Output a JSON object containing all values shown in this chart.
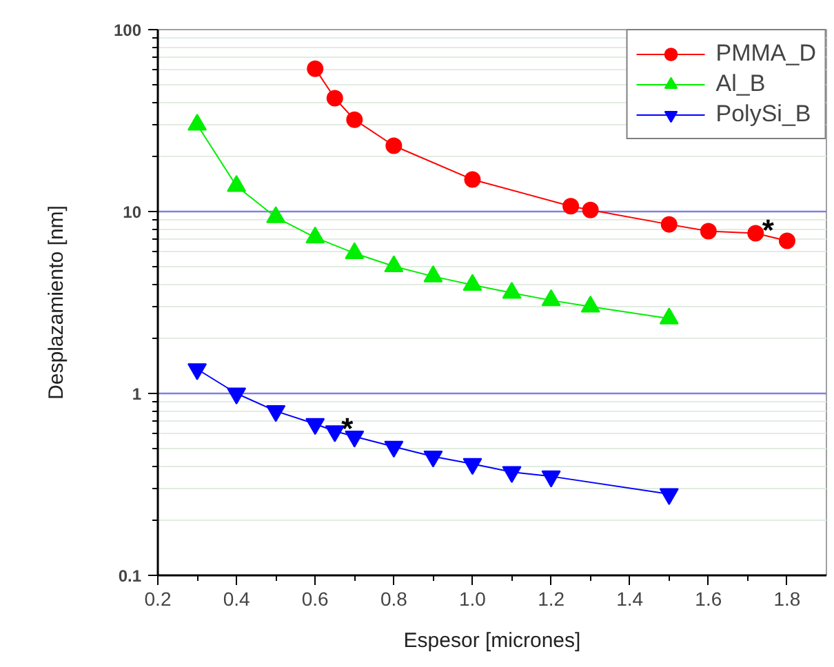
{
  "chart_data": {
    "type": "line",
    "xlabel": "Espesor [micrones]",
    "ylabel": "Desplazamiento [nm]",
    "log": "y",
    "xlim": [
      0.2,
      1.9
    ],
    "ylim": [
      0.1,
      100
    ],
    "xticks": [
      0.2,
      0.4,
      0.6,
      0.8,
      {
        "value": 1.0,
        "label": "1.0"
      },
      1.2,
      1.4,
      1.6,
      1.8
    ],
    "yticks": [
      0.1,
      1,
      10,
      100
    ],
    "grid": "y",
    "legend": "top right",
    "line_style": "solid",
    "series": [
      {
        "name": "PMMA_D",
        "color": "#ff0000",
        "marker": "circle",
        "x": [
          0.6,
          0.65,
          0.7,
          0.8,
          1.0,
          1.25,
          1.3,
          1.5,
          1.6,
          1.72,
          1.8
        ],
        "values": [
          61,
          42,
          32,
          23,
          15,
          10.7,
          10.2,
          8.5,
          7.8,
          7.6,
          6.9
        ]
      },
      {
        "name": "Al_B",
        "color": "#00ee00",
        "marker": "triangle",
        "x": [
          0.3,
          0.4,
          0.5,
          0.6,
          0.7,
          0.8,
          0.9,
          1.0,
          1.1,
          1.2,
          1.3,
          1.5
        ],
        "values": [
          30,
          13.8,
          9.3,
          7.2,
          5.9,
          5.0,
          4.4,
          3.95,
          3.57,
          3.25,
          3.0,
          2.58
        ]
      },
      {
        "name": "PolySi_B",
        "color": "#0000ff",
        "marker": "triangle_down",
        "x": [
          0.3,
          0.4,
          0.5,
          0.6,
          0.65,
          0.7,
          0.8,
          0.9,
          1.0,
          1.1,
          1.2,
          1.5
        ],
        "values": [
          1.36,
          1.0,
          0.8,
          0.68,
          0.62,
          0.58,
          0.51,
          0.45,
          0.41,
          0.37,
          0.35,
          0.28
        ]
      }
    ],
    "annotations": [
      {
        "text": "*",
        "x": 1.72,
        "y": 7.6
      },
      {
        "text": "*",
        "x": 0.65,
        "y": 0.62
      }
    ]
  }
}
